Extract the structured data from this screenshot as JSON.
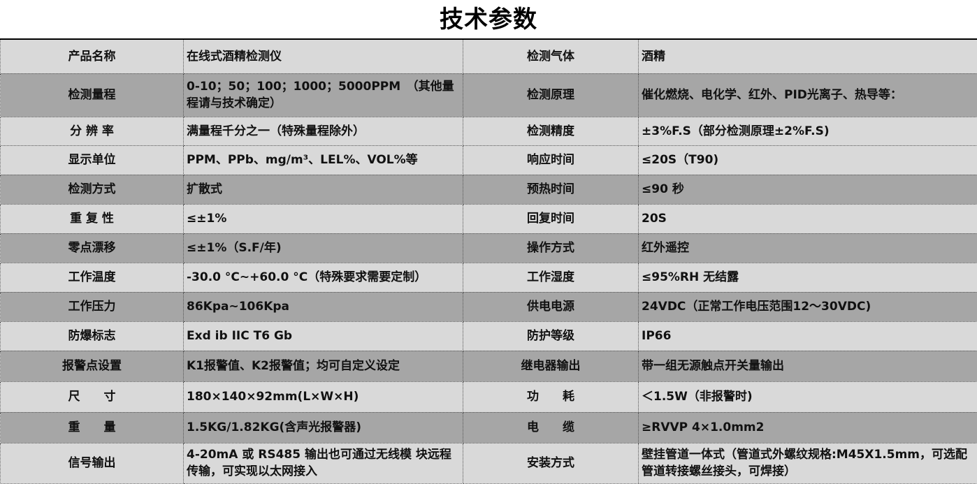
{
  "title": "技术参数",
  "colors": {
    "light_row": "#d9d9d9",
    "dark_row": "#a6a6a6"
  },
  "rows": [
    {
      "k1": "产品名称",
      "v1": "在线式酒精检测仪",
      "k2": "检测气体",
      "v2": "酒精",
      "shade": "light"
    },
    {
      "k1": "检测量程",
      "v1": "0-10；50；100；1000；5000PPM　（其他量程请与技术确定）",
      "k2": "检测原理",
      "v2": "催化燃烧、电化学、红外、PID光离子、热导等：",
      "shade": "dark"
    },
    {
      "k1": "分 辨 率",
      "v1": "满量程千分之一（特殊量程除外）",
      "k2": "检测精度",
      "v2": "±3%F.S（部分检测原理±2%F.S)",
      "shade": "light"
    },
    {
      "k1": "显示单位",
      "v1": "PPM、PPb、mg/m³、LEL%、VOL%等",
      "k2": "响应时间",
      "v2": "≤20S（T90)",
      "shade": "light"
    },
    {
      "k1": "检测方式",
      "v1": "扩散式",
      "k2": "预热时间",
      "v2": "≤90 秒",
      "shade": "dark"
    },
    {
      "k1": "重 复 性",
      "v1": "≤±1%",
      "k2": "回复时间",
      "v2": "20S",
      "shade": "light"
    },
    {
      "k1": "零点漂移",
      "v1": "≤±1%（S.F/年)",
      "k2": "操作方式",
      "v2": "红外遥控",
      "shade": "dark"
    },
    {
      "k1": "工作温度",
      "v1": "-30.0 °C~+60.0 °C（特殊要求需要定制）",
      "k2": "工作湿度",
      "v2": "≤95%RH 无结露",
      "shade": "light"
    },
    {
      "k1": "工作压力",
      "v1": "86Kpa~106Kpa",
      "k2": "供电电源",
      "v2": "24VDC（正常工作电压范围12～30VDC)",
      "shade": "dark"
    },
    {
      "k1": "防爆标志",
      "v1": "Exd ib IIC T6 Gb",
      "k2": "防护等级",
      "v2": "IP66",
      "shade": "light"
    },
    {
      "k1": "报警点设置",
      "v1": "K1报警值、K2报警值；均可自定义设定",
      "k2": "继电器输出",
      "v2": "带一组无源触点开关量输出",
      "shade": "dark"
    },
    {
      "k1": "尺　　寸",
      "v1": "180×140×92mm(L×W×H)",
      "k2": "功　　耗",
      "v2": "＜1.5W（非报警时)",
      "shade": "light"
    },
    {
      "k1": "重　　量",
      "v1": "1.5KG/1.82KG(含声光报警器)",
      "k2": "电　　缆",
      "v2": "≥RVVP 4×1.0mm2",
      "shade": "dark"
    },
    {
      "k1": "信号输出",
      "v1": "4-20mA 或 RS485 输出也可通过无线模 块远程传输，可实现以太网接入",
      "k2": "安装方式",
      "v2": "壁挂管道一体式（管道式外螺纹规格:M45X1.5mm，可选配管道转接螺丝接头，可焊接）",
      "shade": "light"
    }
  ]
}
